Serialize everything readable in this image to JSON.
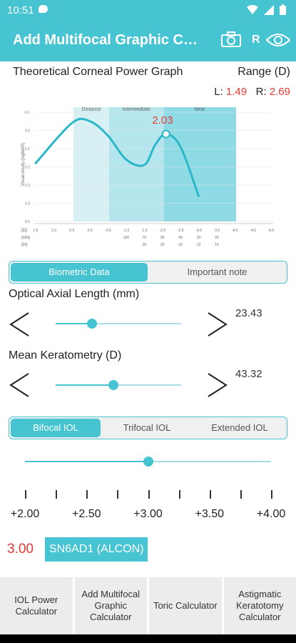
{
  "status_bar": {
    "time": "10:51"
  },
  "app_bar": {
    "title": "Add Multifocal Graphic Calculator",
    "eye_side": "R"
  },
  "graph": {
    "title": "Theoretical Corneal Power Graph",
    "range_label": "Range (D)",
    "l_label": "L:",
    "l_value": "1.49",
    "r_label": "R:",
    "r_value": "2.69",
    "peak_label": "2.03",
    "y_axis_label": "Visual Acuity (logMAR)",
    "zones": [
      "Distance",
      "Intermediate",
      "Near"
    ],
    "row_labels": [
      "(D)",
      "(cm)",
      "(in)"
    ],
    "d_ticks": [
      "1.5",
      "1.0",
      "0.5",
      "0.0",
      "-0.5",
      "-1.0",
      "-1.5",
      "-2.0",
      "-2.5",
      "-3.0",
      "-3.5",
      "-4.0",
      "-4.5",
      "-5.0"
    ],
    "cm_ticks": [
      "100",
      "70",
      "50",
      "40",
      "33",
      "29"
    ],
    "in_ticks": [
      "28",
      "20",
      "16",
      "13",
      "10"
    ],
    "y_ticks": [
      "-0.1",
      "0.0",
      "0.1",
      "0.2",
      "0.3",
      "0.4",
      "0.5"
    ]
  },
  "chart_data": {
    "type": "line",
    "title": "Theoretical Corneal Power Graph",
    "xlabel": "(D)",
    "ylabel": "Visual Acuity (logMAR)",
    "xlim": [
      1.5,
      -5.0
    ],
    "ylim": [
      -0.1,
      0.5
    ],
    "series": [
      {
        "x": [
          1.5,
          0.5,
          0.0,
          -0.5,
          -1.0,
          -1.5,
          -1.8,
          -2.1,
          -2.5,
          -3.0
        ],
        "y": [
          0.18,
          -0.04,
          -0.05,
          0.03,
          0.16,
          0.19,
          0.08,
          0.02,
          0.09,
          0.36
        ]
      }
    ]
  },
  "tabs_info": {
    "biometric": "Biometric Data",
    "note": "Important note"
  },
  "axial": {
    "label": "Optical Axial Length (mm)",
    "value": "23.43",
    "fraction": 0.29
  },
  "kera": {
    "label": "Mean Keratometry (D)",
    "value": "43.32",
    "fraction": 0.46
  },
  "iol_tabs": {
    "bifocal": "Bifocal IOL",
    "trifocal": "Trifocal IOL",
    "extended": "Extended IOL"
  },
  "add_slider": {
    "fraction": 0.5
  },
  "add_scale": [
    "+2.00",
    "+2.50",
    "+3.00",
    "+3.50",
    "+4.00"
  ],
  "selected": {
    "value": "3.00",
    "model": "SN6AD1 (ALCON)"
  },
  "bottom_nav": [
    "IOL Power Calculator",
    "Add Multifocal Graphic Calculator",
    "Toric Calculator",
    "Astigmatic Keratotomy Calculator"
  ],
  "colors": {
    "accent": "#47c4d2",
    "red": "#e53935"
  }
}
